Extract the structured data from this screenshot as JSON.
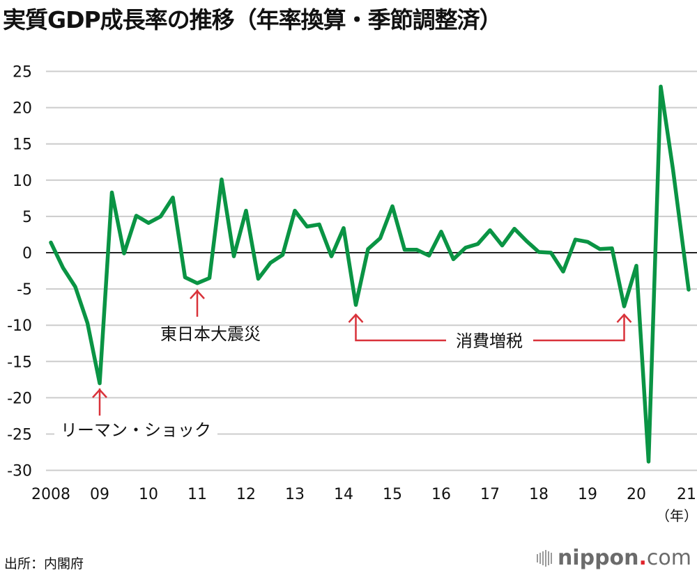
{
  "title": "実質GDP成長率の推移（年率換算・季節調整済）",
  "source": "出所：内閣府",
  "logo": {
    "name": "nippon",
    "dot": ".",
    "tld": "com"
  },
  "colors": {
    "line": "#0a9444",
    "annotation": "#d9323a",
    "grid": "#cccccc",
    "zero": "#222222"
  },
  "chart_data": {
    "type": "line",
    "title": "実質GDP成長率の推移（年率換算・季節調整済）",
    "xlabel": "（年）",
    "ylabel": "",
    "ylim": [
      -30,
      25
    ],
    "yticks": [
      25,
      20,
      15,
      10,
      5,
      0,
      -5,
      -10,
      -15,
      -20,
      -25,
      -30
    ],
    "xtick_labels": [
      "2008",
      "09",
      "10",
      "11",
      "12",
      "13",
      "14",
      "15",
      "16",
      "17",
      "18",
      "19",
      "20",
      "21"
    ],
    "grid": true,
    "x": [
      "2008Q1",
      "2008Q2",
      "2008Q3",
      "2008Q4",
      "2009Q1",
      "2009Q2",
      "2009Q3",
      "2009Q4",
      "2010Q1",
      "2010Q2",
      "2010Q3",
      "2010Q4",
      "2011Q1",
      "2011Q2",
      "2011Q3",
      "2011Q4",
      "2012Q1",
      "2012Q2",
      "2012Q3",
      "2012Q4",
      "2013Q1",
      "2013Q2",
      "2013Q3",
      "2013Q4",
      "2014Q1",
      "2014Q2",
      "2014Q3",
      "2014Q4",
      "2015Q1",
      "2015Q2",
      "2015Q3",
      "2015Q4",
      "2016Q1",
      "2016Q2",
      "2016Q3",
      "2016Q4",
      "2017Q1",
      "2017Q2",
      "2017Q3",
      "2017Q4",
      "2018Q1",
      "2018Q2",
      "2018Q3",
      "2018Q4",
      "2019Q1",
      "2019Q2",
      "2019Q3",
      "2019Q4",
      "2020Q1",
      "2020Q2",
      "2020Q3",
      "2020Q4",
      "2021Q1"
    ],
    "series": [
      {
        "name": "実質GDP成長率",
        "values": [
          1.4,
          -2.1,
          -4.7,
          -9.7,
          -18.0,
          8.3,
          -0.1,
          5.1,
          4.1,
          5.0,
          7.6,
          -3.4,
          -4.2,
          -3.5,
          10.1,
          -0.5,
          5.8,
          -3.6,
          -1.4,
          -0.3,
          5.8,
          3.6,
          3.9,
          -0.5,
          3.4,
          -7.2,
          0.5,
          2.0,
          6.4,
          0.4,
          0.4,
          -0.4,
          2.9,
          -0.9,
          0.7,
          1.2,
          3.1,
          1.0,
          3.3,
          1.6,
          0.1,
          0.0,
          -2.6,
          1.8,
          1.5,
          0.5,
          0.6,
          -7.4,
          -1.8,
          -28.8,
          22.9,
          11.5,
          -5.1
        ]
      }
    ],
    "annotations": [
      {
        "label": "リーマン・ショック",
        "points": [
          "2009Q1"
        ]
      },
      {
        "label": "東日本大震災",
        "points": [
          "2011Q1"
        ]
      },
      {
        "label": "消費増税",
        "points": [
          "2014Q2",
          "2019Q4"
        ]
      }
    ]
  }
}
